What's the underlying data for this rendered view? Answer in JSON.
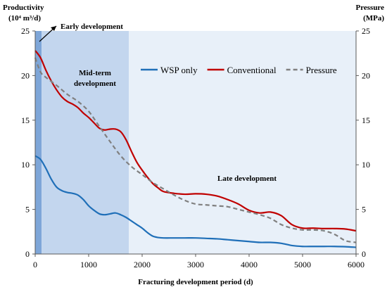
{
  "chart_data": {
    "type": "line",
    "xlabel": "Fracturing development period (d)",
    "ylabel_left": [
      "Productivity",
      "(10⁴ m³/d)"
    ],
    "ylabel_right": [
      "Pressure",
      "(MPa)"
    ],
    "xlim": [
      0,
      6000
    ],
    "ylim_left": [
      0,
      25
    ],
    "ylim_right": [
      0,
      25
    ],
    "x_ticks": [
      0,
      1000,
      2000,
      3000,
      4000,
      5000,
      6000
    ],
    "y_ticks": [
      0,
      5,
      10,
      15,
      20,
      25
    ],
    "grid": false,
    "legend_position": "top-right",
    "bands": [
      {
        "label": "Early development",
        "x_start": 0,
        "x_end": 120,
        "color": "#7ea6d8"
      },
      {
        "label": "Mid-term development",
        "x_start": 120,
        "x_end": 1750,
        "color": "#c3d6ee"
      },
      {
        "label": "Late development",
        "x_start": 1750,
        "x_end": 6000,
        "color": "#e8f0f9"
      }
    ],
    "band_label_lines": {
      "early": [
        "Early development"
      ],
      "mid": [
        "Mid-term",
        "development"
      ],
      "late": [
        "Late development"
      ]
    },
    "series": [
      {
        "name": "WSP only",
        "axis": "left",
        "color": "#1f6fb8",
        "dash": "",
        "x": [
          0,
          100,
          200,
          300,
          400,
          500,
          600,
          700,
          800,
          900,
          1000,
          1100,
          1200,
          1300,
          1400,
          1500,
          1600,
          1700,
          1800,
          1900,
          2000,
          2100,
          2200,
          2300,
          2400,
          2600,
          2800,
          3000,
          3200,
          3400,
          3600,
          3800,
          4000,
          4200,
          4400,
          4600,
          4800,
          5000,
          5200,
          5400,
          5600,
          5800,
          6000
        ],
        "values": [
          11.0,
          10.6,
          9.6,
          8.4,
          7.5,
          7.1,
          6.9,
          6.8,
          6.6,
          6.1,
          5.4,
          4.9,
          4.5,
          4.4,
          4.5,
          4.6,
          4.4,
          4.1,
          3.7,
          3.3,
          2.9,
          2.4,
          2.0,
          1.85,
          1.8,
          1.8,
          1.8,
          1.8,
          1.75,
          1.7,
          1.6,
          1.5,
          1.4,
          1.3,
          1.3,
          1.2,
          0.95,
          0.85,
          0.85,
          0.85,
          0.85,
          0.82,
          0.75
        ]
      },
      {
        "name": "Conventional",
        "axis": "left",
        "color": "#c00000",
        "dash": "",
        "x": [
          0,
          100,
          200,
          300,
          400,
          500,
          600,
          700,
          800,
          900,
          1000,
          1100,
          1200,
          1300,
          1400,
          1500,
          1600,
          1700,
          1800,
          1900,
          2000,
          2100,
          2200,
          2300,
          2400,
          2600,
          2800,
          3000,
          3200,
          3400,
          3600,
          3800,
          4000,
          4200,
          4400,
          4600,
          4800,
          5000,
          5200,
          5400,
          5600,
          5800,
          6000
        ],
        "values": [
          22.8,
          22.0,
          20.6,
          19.4,
          18.4,
          17.6,
          17.1,
          16.8,
          16.4,
          15.8,
          15.3,
          14.7,
          14.1,
          13.9,
          14.0,
          14.0,
          13.7,
          12.8,
          11.5,
          10.3,
          9.4,
          8.6,
          7.9,
          7.4,
          7.0,
          6.8,
          6.7,
          6.75,
          6.7,
          6.5,
          6.1,
          5.6,
          4.9,
          4.6,
          4.7,
          4.3,
          3.3,
          2.9,
          2.9,
          2.85,
          2.85,
          2.8,
          2.6
        ]
      },
      {
        "name": "Pressure",
        "axis": "right",
        "color": "#808080",
        "dash": "6,4",
        "x": [
          0,
          100,
          200,
          400,
          600,
          800,
          1000,
          1200,
          1400,
          1600,
          1800,
          2000,
          2200,
          2400,
          2600,
          2800,
          3000,
          3200,
          3400,
          3600,
          3800,
          4000,
          4200,
          4400,
          4600,
          4800,
          5000,
          5200,
          5400,
          5600,
          5800,
          6000
        ],
        "values": [
          22.0,
          20.4,
          19.8,
          18.9,
          17.9,
          17.1,
          16.0,
          14.3,
          12.6,
          11.0,
          9.8,
          8.9,
          8.0,
          7.3,
          6.6,
          6.0,
          5.6,
          5.5,
          5.4,
          5.3,
          5.0,
          4.7,
          4.4,
          4.0,
          3.3,
          2.9,
          2.7,
          2.7,
          2.6,
          2.2,
          1.5,
          1.3
        ]
      }
    ]
  }
}
